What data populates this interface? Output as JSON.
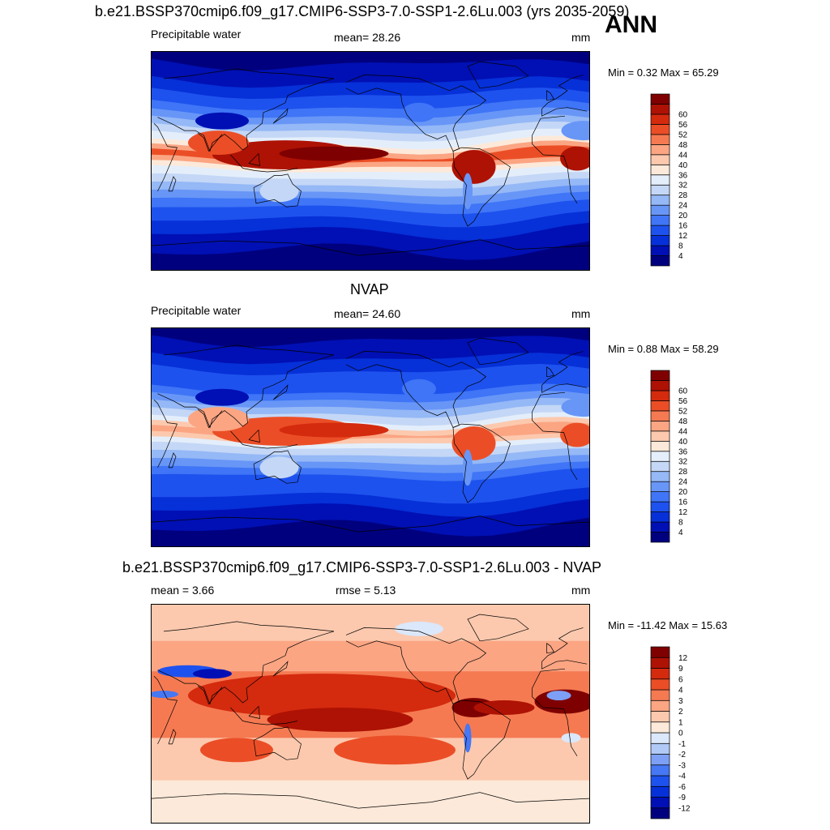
{
  "header": {
    "title": "b.e21.BSSP370cmip6.f09_g17.CMIP6-SSP3-7.0-SSP1-2.6Lu.003 (yrs 2035-2059)",
    "season": "ANN"
  },
  "colors": {
    "abs_palette": [
      "#00007f",
      "#0010b4",
      "#0630d8",
      "#1e52ee",
      "#3f75f6",
      "#6896f7",
      "#95b8f6",
      "#c4d7f6",
      "#e4eefb",
      "#fde9d9",
      "#fcc9ae",
      "#fba583",
      "#f57a52",
      "#eb4e26",
      "#d42a0e",
      "#ae1204",
      "#7f0000"
    ],
    "diff_palette": [
      "#00007f",
      "#0010b4",
      "#0630d8",
      "#1e52ee",
      "#4677f4",
      "#7da0f6",
      "#b1c9f6",
      "#dbe7fa",
      "#fde9d9",
      "#fcc9ae",
      "#fba583",
      "#f57a52",
      "#eb4e26",
      "#d42a0e",
      "#ae1204",
      "#7f0000"
    ]
  },
  "panels": [
    {
      "title": "",
      "left_label": "Precipitable water",
      "center_label": "mean=  28.26",
      "units": "mm",
      "minmax": "Min =   0.32 Max =  65.29"
    },
    {
      "title": "NVAP",
      "left_label": "Precipitable water",
      "center_label": "mean=  24.60",
      "units": "mm",
      "minmax": "Min =   0.88 Max =  58.29"
    },
    {
      "title": "b.e21.BSSP370cmip6.f09_g17.CMIP6-SSP3-7.0-SSP1-2.6Lu.003 - NVAP",
      "left_label": "mean =   3.66",
      "center_label": "rmse =   5.13",
      "units": "mm",
      "minmax": "Min = -11.42 Max =  15.63"
    }
  ],
  "chart_data": [
    {
      "type": "heatmap",
      "title": "b.e21.BSSP370cmip6.f09_g17.CMIP6-SSP3-7.0-SSP1-2.6Lu.003 (yrs 2035-2059)",
      "variable": "Precipitable water",
      "units": "mm",
      "mean": 28.26,
      "min": 0.32,
      "max": 65.29,
      "colorbar_levels": [
        4,
        8,
        12,
        16,
        20,
        24,
        28,
        32,
        36,
        40,
        44,
        48,
        52,
        56,
        60
      ]
    },
    {
      "type": "heatmap",
      "title": "NVAP",
      "variable": "Precipitable water",
      "units": "mm",
      "mean": 24.6,
      "min": 0.88,
      "max": 58.29,
      "colorbar_levels": [
        4,
        8,
        12,
        16,
        20,
        24,
        28,
        32,
        36,
        40,
        44,
        48,
        52,
        56,
        60
      ]
    },
    {
      "type": "heatmap",
      "title": "b.e21.BSSP370cmip6.f09_g17.CMIP6-SSP3-7.0-SSP1-2.6Lu.003 - NVAP",
      "units": "mm",
      "mean": 3.66,
      "rmse": 5.13,
      "min": -11.42,
      "max": 15.63,
      "colorbar_levels": [
        -12,
        -9,
        -6,
        -4,
        -3,
        -2,
        -1,
        0,
        1,
        2,
        3,
        4,
        6,
        9,
        12
      ]
    }
  ]
}
